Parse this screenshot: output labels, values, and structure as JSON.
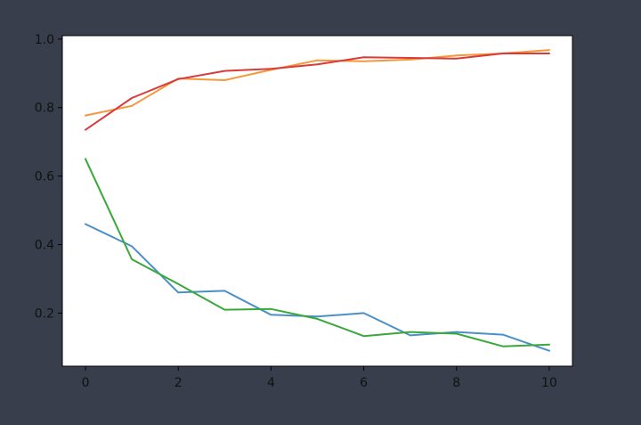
{
  "chart_data": {
    "type": "line",
    "title": "",
    "xlabel": "",
    "ylabel": "",
    "xlim": [
      -0.5,
      10.5
    ],
    "ylim": [
      0.045,
      1.01
    ],
    "xticks": [
      0,
      2,
      4,
      6,
      8,
      10
    ],
    "yticks": [
      0.2,
      0.4,
      0.6,
      0.8,
      1.0
    ],
    "xtick_labels": [
      "0",
      "2",
      "4",
      "6",
      "8",
      "10"
    ],
    "ytick_labels": [
      "0.2",
      "0.4",
      "0.6",
      "0.8",
      "1.0"
    ],
    "grid": false,
    "x": [
      0,
      1,
      2,
      3,
      4,
      5,
      6,
      7,
      8,
      9,
      10
    ],
    "series": [
      {
        "color": "#4a90c8",
        "values": [
          0.46,
          0.395,
          0.26,
          0.265,
          0.195,
          0.19,
          0.2,
          0.135,
          0.145,
          0.137,
          0.09
        ]
      },
      {
        "color": "#f5973a",
        "values": [
          0.777,
          0.805,
          0.885,
          0.88,
          0.91,
          0.938,
          0.935,
          0.94,
          0.952,
          0.958,
          0.968
        ]
      },
      {
        "color": "#3aa83a",
        "values": [
          0.65,
          0.357,
          0.285,
          0.21,
          0.212,
          0.183,
          0.133,
          0.145,
          0.14,
          0.103,
          0.108
        ]
      },
      {
        "color": "#d93a3a",
        "values": [
          0.735,
          0.828,
          0.883,
          0.907,
          0.913,
          0.926,
          0.947,
          0.945,
          0.943,
          0.958,
          0.958
        ]
      }
    ]
  }
}
